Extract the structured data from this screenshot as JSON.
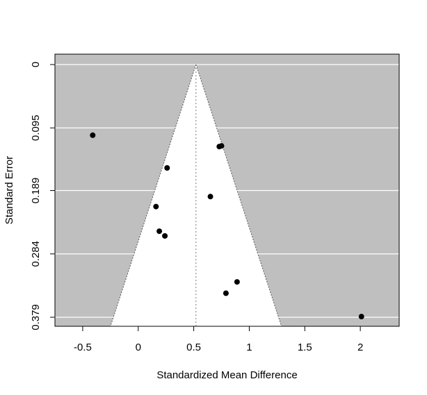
{
  "chart_data": {
    "type": "scatter",
    "title": "",
    "xlabel": "Standardized Mean Difference",
    "ylabel": "Standard Error",
    "xlim": [
      -0.75,
      2.35
    ],
    "ylim": [
      0,
      0.393
    ],
    "y_reversed": true,
    "x_ticks": [
      -0.5,
      0,
      0.5,
      1,
      1.5,
      2
    ],
    "x_tick_labels": [
      "-0.5",
      "0",
      "0.5",
      "1",
      "1.5",
      "2"
    ],
    "y_ticks": [
      0,
      0.095,
      0.189,
      0.284,
      0.379
    ],
    "y_tick_labels": [
      "0",
      "0.095",
      "0.189",
      "0.284",
      "0.379"
    ],
    "grid": true,
    "pooled_estimate": 0.52,
    "funnel_z": 1.96,
    "colors": {
      "background": "#bfbfbf",
      "funnel_fill": "#ffffff",
      "grid": "#ffffff",
      "points": "#000000",
      "funnel_lines": "#555555"
    },
    "points": [
      {
        "x": -0.41,
        "y": 0.106
      },
      {
        "x": 0.26,
        "y": 0.155
      },
      {
        "x": 0.73,
        "y": 0.123
      },
      {
        "x": 0.75,
        "y": 0.122
      },
      {
        "x": 0.65,
        "y": 0.198
      },
      {
        "x": 0.16,
        "y": 0.213
      },
      {
        "x": 0.19,
        "y": 0.25
      },
      {
        "x": 0.24,
        "y": 0.257
      },
      {
        "x": 0.89,
        "y": 0.326
      },
      {
        "x": 0.79,
        "y": 0.343
      },
      {
        "x": 2.01,
        "y": 0.378
      }
    ]
  }
}
